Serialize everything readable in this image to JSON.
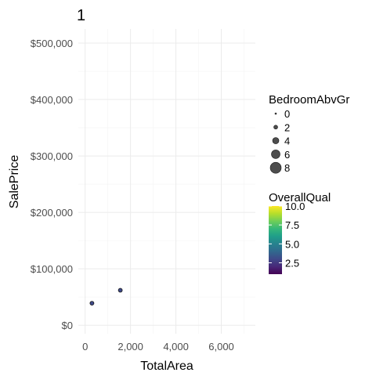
{
  "chart_data": {
    "type": "scatter",
    "title": "1",
    "xlabel": "TotalArea",
    "ylabel": "SalePrice",
    "xlim": [
      -300,
      7500
    ],
    "ylim": [
      -15000,
      525000
    ],
    "x_ticks": [
      0,
      2000,
      4000,
      6000
    ],
    "x_tick_labels": [
      "0",
      "2,000",
      "4,000",
      "6,000"
    ],
    "y_ticks": [
      0,
      100000,
      200000,
      300000,
      400000,
      500000
    ],
    "y_tick_labels": [
      "$0",
      "$100,000",
      "$200,000",
      "$300,000",
      "$400,000",
      "$500,000"
    ],
    "grid": true,
    "points": [
      {
        "x": 300,
        "y": 39000,
        "bedrooms": 2,
        "quality": 3
      },
      {
        "x": 1550,
        "y": 62000,
        "bedrooms": 2,
        "quality": 3
      }
    ],
    "size_legend": {
      "title": "BedroomAbvGr",
      "values": [
        0,
        2,
        4,
        6,
        8
      ],
      "labels": [
        "0",
        "2",
        "4",
        "6",
        "8"
      ]
    },
    "color_legend": {
      "title": "OverallQual",
      "min": 1,
      "max": 10,
      "ticks": [
        2.5,
        5.0,
        7.5,
        10.0
      ],
      "labels": [
        "2.5",
        "5.0",
        "7.5",
        "10.0"
      ],
      "colors": [
        "#440154",
        "#482878",
        "#3e4989",
        "#31688e",
        "#26828e",
        "#1f9e89",
        "#35b779",
        "#6ece58",
        "#b5de2b",
        "#fde725"
      ]
    }
  }
}
